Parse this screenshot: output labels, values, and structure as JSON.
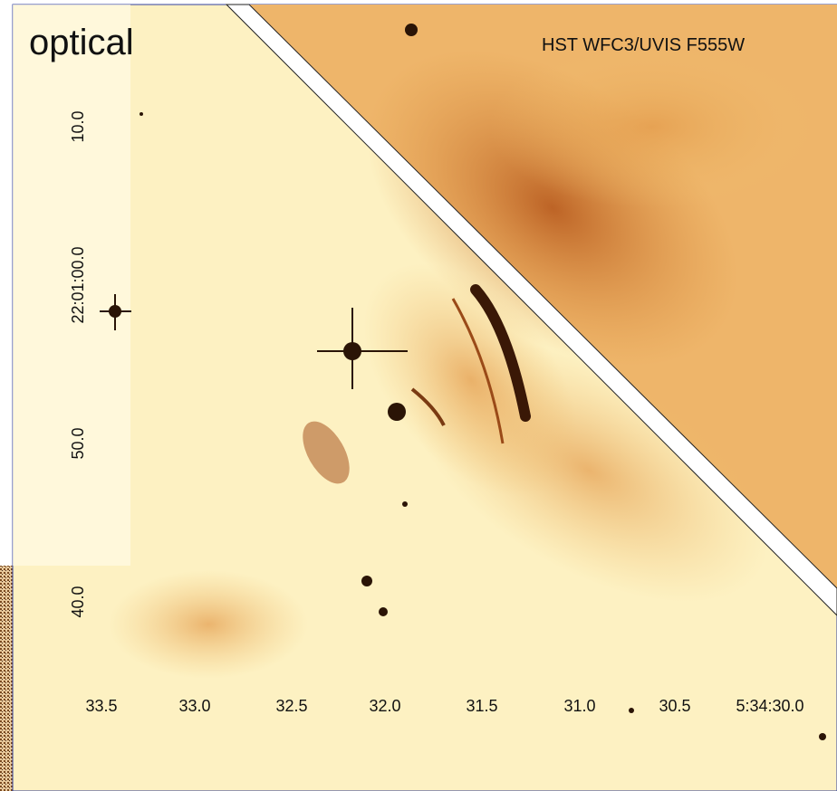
{
  "panel_label": "optical",
  "instrument": "HST WFC3/UVIS F555W",
  "y_axis": {
    "labels": [
      "10.0",
      "22:01:00.0",
      "50.0",
      "40.0"
    ]
  },
  "x_axis": {
    "labels": [
      "33.5",
      "33.0",
      "32.5",
      "32.0",
      "31.5",
      "31.0",
      "30.5",
      "5:34:30.0"
    ]
  }
}
